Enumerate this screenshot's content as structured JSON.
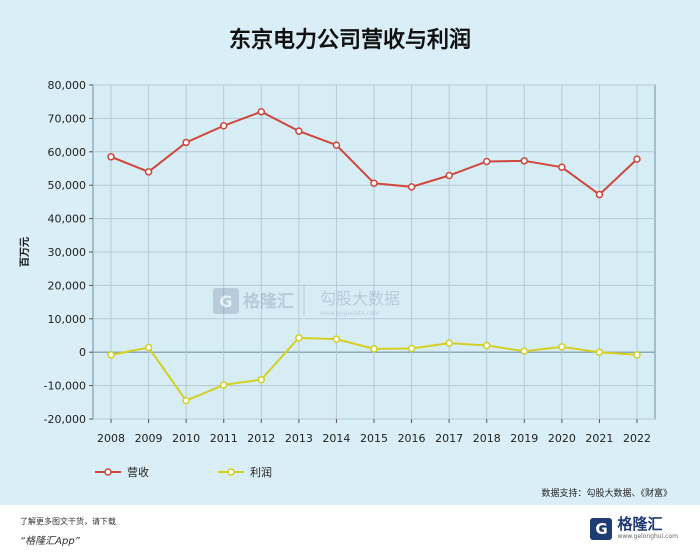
{
  "chart_data": {
    "type": "line",
    "title": "东京电力公司营收与利润",
    "ylabel": "百万元",
    "xlabel": "",
    "categories": [
      "2008",
      "2009",
      "2010",
      "2011",
      "2012",
      "2013",
      "2014",
      "2015",
      "2016",
      "2017",
      "2018",
      "2019",
      "2020",
      "2021",
      "2022"
    ],
    "yticks": [
      -20000,
      -10000,
      0,
      10000,
      20000,
      30000,
      40000,
      50000,
      60000,
      70000,
      80000
    ],
    "ytick_labels": [
      "-20,000",
      "-10,000",
      "0",
      "10,000",
      "20,000",
      "30,000",
      "40,000",
      "50,000",
      "60,000",
      "70,000",
      "80,000"
    ],
    "ylim": [
      -20000,
      80000
    ],
    "grid": true,
    "legend_position": "bottom-left",
    "series": [
      {
        "name": "营收",
        "color": "#d0463a",
        "values": [
          58500,
          54000,
          62800,
          67800,
          72000,
          66200,
          62000,
          50600,
          49500,
          52900,
          57100,
          57300,
          55400,
          47200,
          57800
        ]
      },
      {
        "name": "利润",
        "color": "#d3cf23",
        "values": [
          -800,
          1400,
          -14500,
          -9800,
          -8200,
          4300,
          3900,
          1000,
          1100,
          2700,
          2000,
          300,
          1600,
          0,
          -800
        ]
      }
    ]
  },
  "watermark": {
    "left": "格隆汇",
    "right": "勾股大数据",
    "right_sub": "www.gogudata.com"
  },
  "source": "数据支持：勾股大数据、《财富》",
  "footer": {
    "promo_line1": "了解更多图文干货，请下载",
    "promo_line2": "“格隆汇App”",
    "brand_name": "格隆汇",
    "brand_sub": "www.gelonghui.com",
    "brand_mark": "G"
  }
}
